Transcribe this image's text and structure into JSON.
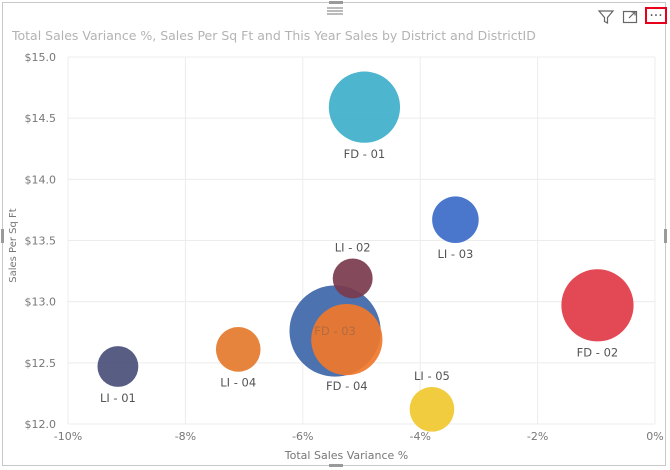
{
  "visual": {
    "title": "Total Sales Variance %, Sales Per Sq Ft and This Year Sales by District and DistrictID",
    "icons": [
      "drag-handle-icon",
      "filter-icon",
      "focus-mode-icon",
      "more-options-icon"
    ],
    "more_label": "···"
  },
  "chart_data": {
    "type": "scatter",
    "xlabel": "Total Sales Variance %",
    "ylabel": "Sales Per Sq Ft",
    "xlim": [
      -10,
      0
    ],
    "ylim": [
      12.0,
      15.0
    ],
    "x_ticks": [
      {
        "v": -10,
        "label": "-10%"
      },
      {
        "v": -8,
        "label": "-8%"
      },
      {
        "v": -6,
        "label": "-6%"
      },
      {
        "v": -4,
        "label": "-4%"
      },
      {
        "v": -2,
        "label": "-2%"
      },
      {
        "v": 0,
        "label": "0%"
      }
    ],
    "y_ticks": [
      {
        "v": 12.0,
        "label": "$12.0"
      },
      {
        "v": 12.5,
        "label": "$12.5"
      },
      {
        "v": 13.0,
        "label": "$13.0"
      },
      {
        "v": 13.5,
        "label": "$13.5"
      },
      {
        "v": 14.0,
        "label": "$14.0"
      },
      {
        "v": 14.5,
        "label": "$14.5"
      },
      {
        "v": 15.0,
        "label": "$15.0"
      }
    ],
    "grid": true,
    "points": [
      {
        "label": "LI - 01",
        "x": -9.15,
        "y": 12.47,
        "size": 0.43,
        "color": "#4a4f7a",
        "label_pos": "below"
      },
      {
        "label": "LI - 04",
        "x": -7.1,
        "y": 12.61,
        "size": 0.47,
        "color": "#e47a2c",
        "label_pos": "below"
      },
      {
        "label": "FD - 03",
        "x": -5.45,
        "y": 12.76,
        "size": 0.96,
        "color": "#3d66a8",
        "label_pos": "hidden"
      },
      {
        "label": "FD - 04",
        "x": -5.25,
        "y": 12.69,
        "size": 0.75,
        "color": "#f0772a",
        "label_pos": "below"
      },
      {
        "label": "LI - 02",
        "x": -5.15,
        "y": 13.19,
        "size": 0.42,
        "color": "#7a3b4e",
        "label_pos": "above"
      },
      {
        "label": "FD - 01",
        "x": -4.95,
        "y": 14.59,
        "size": 0.75,
        "color": "#3eafc9",
        "label_pos": "below"
      },
      {
        "label": "LI - 03",
        "x": -3.4,
        "y": 13.67,
        "size": 0.49,
        "color": "#3b6ac8",
        "label_pos": "below"
      },
      {
        "label": "LI - 05",
        "x": -3.8,
        "y": 12.12,
        "size": 0.47,
        "color": "#f1c82f",
        "label_pos": "above"
      },
      {
        "label": "FD - 02",
        "x": -0.98,
        "y": 12.97,
        "size": 0.76,
        "color": "#e03a45",
        "label_pos": "below"
      }
    ]
  }
}
